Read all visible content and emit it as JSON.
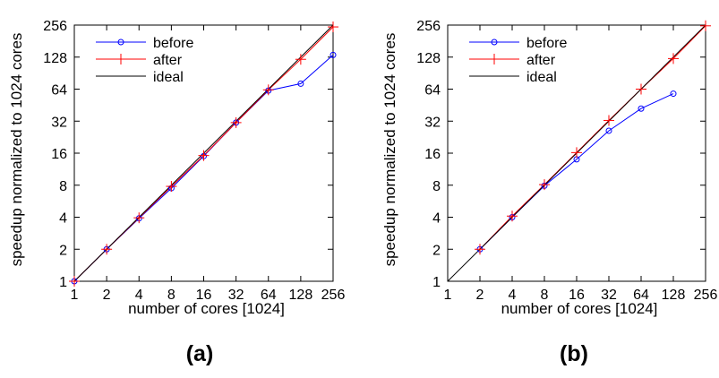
{
  "chart_data": [
    {
      "type": "line",
      "caption": "(a)",
      "xlabel": "number of cores [1024]",
      "ylabel": "speedup normalized to 1024 cores",
      "x_scale": "log2",
      "y_scale": "log2",
      "xlim": [
        1,
        256
      ],
      "ylim": [
        1,
        256
      ],
      "x_ticks": [
        "1",
        "2",
        "4",
        "8",
        "16",
        "32",
        "64",
        "128",
        "256"
      ],
      "y_ticks": [
        "1",
        "2",
        "4",
        "8",
        "16",
        "32",
        "64",
        "128",
        "256"
      ],
      "legend_position": "top-left",
      "series": [
        {
          "name": "before",
          "color": "#0000ff",
          "marker": "circle",
          "x": [
            1,
            2,
            4,
            8,
            16,
            32,
            64,
            128,
            256
          ],
          "y": [
            1,
            2,
            3.9,
            7.5,
            15,
            31,
            62,
            72,
            134
          ]
        },
        {
          "name": "after",
          "color": "#ff0000",
          "marker": "plus",
          "x": [
            1,
            2,
            4,
            8,
            16,
            32,
            64,
            128,
            256
          ],
          "y": [
            1,
            2,
            3.95,
            7.8,
            15.2,
            31,
            63,
            122,
            246
          ]
        },
        {
          "name": "ideal",
          "color": "#000000",
          "marker": "none",
          "x": [
            1,
            256
          ],
          "y": [
            1,
            256
          ]
        }
      ]
    },
    {
      "type": "line",
      "caption": "(b)",
      "xlabel": "number of cores [1024]",
      "ylabel": "speedup normalized to 1024 cores",
      "x_scale": "log2",
      "y_scale": "log2",
      "xlim": [
        1,
        256
      ],
      "ylim": [
        1,
        256
      ],
      "x_ticks": [
        "1",
        "2",
        "4",
        "8",
        "16",
        "32",
        "64",
        "128",
        "256"
      ],
      "y_ticks": [
        "1",
        "2",
        "4",
        "8",
        "16",
        "32",
        "64",
        "128",
        "256"
      ],
      "legend_position": "top-left",
      "series": [
        {
          "name": "before",
          "color": "#0000ff",
          "marker": "circle",
          "x": [
            2,
            4,
            8,
            16,
            32,
            64,
            128
          ],
          "y": [
            2,
            4,
            7.9,
            14,
            26,
            42,
            58
          ]
        },
        {
          "name": "after",
          "color": "#ff0000",
          "marker": "plus",
          "x": [
            2,
            4,
            8,
            16,
            32,
            64,
            128,
            256
          ],
          "y": [
            2,
            4.1,
            8.1,
            16.2,
            32.5,
            64,
            124,
            252
          ]
        },
        {
          "name": "ideal",
          "color": "#000000",
          "marker": "none",
          "x": [
            1,
            256
          ],
          "y": [
            1,
            256
          ]
        }
      ]
    }
  ]
}
